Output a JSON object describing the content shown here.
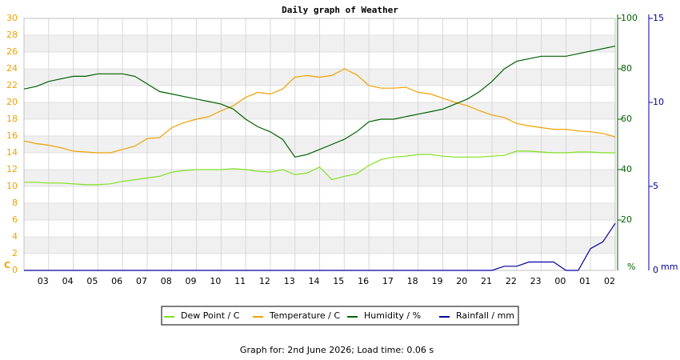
{
  "chart_data": {
    "type": "line",
    "title": "Daily graph of Weather",
    "footer": "Graph for: 2nd June 2026; Load time: 0.06 s",
    "x": [
      0,
      0.5,
      1,
      1.5,
      2,
      2.5,
      3,
      3.5,
      4,
      4.5,
      5,
      5.5,
      6,
      6.5,
      7,
      7.5,
      8,
      8.5,
      9,
      9.5,
      10,
      10.5,
      11,
      11.5,
      12,
      12.5,
      13,
      13.5,
      14,
      14.5,
      15,
      15.5,
      16,
      16.5,
      17,
      17.5,
      18,
      18.5,
      19,
      19.5,
      20,
      20.5,
      21,
      21.5,
      22,
      22.5,
      23,
      23.5,
      24
    ],
    "xlim": [
      0,
      24
    ],
    "xticks": [
      {
        "value": 1,
        "label": "03"
      },
      {
        "value": 2,
        "label": "04"
      },
      {
        "value": 3,
        "label": "05"
      },
      {
        "value": 4,
        "label": "06"
      },
      {
        "value": 5,
        "label": "07"
      },
      {
        "value": 6,
        "label": "08"
      },
      {
        "value": 7,
        "label": "09"
      },
      {
        "value": 8,
        "label": "10"
      },
      {
        "value": 9,
        "label": "11"
      },
      {
        "value": 10,
        "label": "12"
      },
      {
        "value": 11,
        "label": "13"
      },
      {
        "value": 12,
        "label": "14"
      },
      {
        "value": 13,
        "label": "15"
      },
      {
        "value": 14,
        "label": "16"
      },
      {
        "value": 15,
        "label": "17"
      },
      {
        "value": 16,
        "label": "18"
      },
      {
        "value": 17,
        "label": "19"
      },
      {
        "value": 18,
        "label": "20"
      },
      {
        "value": 19,
        "label": "21"
      },
      {
        "value": 20,
        "label": "22"
      },
      {
        "value": 21,
        "label": "23"
      },
      {
        "value": 22,
        "label": "00"
      },
      {
        "value": 23,
        "label": "01"
      },
      {
        "value": 24,
        "label": "02"
      }
    ],
    "ylim": [
      0,
      30
    ],
    "yticks": [
      0,
      2,
      4,
      6,
      8,
      10,
      12,
      14,
      16,
      18,
      20,
      22,
      24,
      26,
      28,
      30
    ],
    "y_unit": "C",
    "y_color": "#f0a000",
    "y2lim": [
      0,
      100
    ],
    "y2ticks": [
      20,
      40,
      60,
      80,
      100
    ],
    "y2_unit": "%",
    "y2_color": "#006000",
    "y3lim": [
      0,
      15
    ],
    "y3ticks": [
      5,
      10,
      15
    ],
    "y3_zero": 0,
    "y3_unit": "mm",
    "y3_color": "#0000a0",
    "grid": true,
    "series": [
      {
        "name": "Dew Point / C",
        "color": "#80e020",
        "axis": "y",
        "values": [
          10.5,
          10.5,
          10.4,
          10.4,
          10.3,
          10.2,
          10.2,
          10.3,
          10.6,
          10.8,
          11.0,
          11.2,
          11.7,
          11.9,
          12.0,
          12.0,
          12.0,
          12.1,
          12.0,
          11.8,
          11.7,
          12.0,
          11.4,
          11.6,
          12.3,
          10.8,
          11.2,
          11.5,
          12.5,
          13.2,
          13.5,
          13.6,
          13.8,
          13.8,
          13.6,
          13.5,
          13.5,
          13.5,
          13.6,
          13.7,
          14.2,
          14.2,
          14.1,
          14.0,
          14.0,
          14.1,
          14.1,
          14.0,
          14.0
        ]
      },
      {
        "name": "Temperature / C",
        "color": "#f0a000",
        "axis": "y",
        "values": [
          15.4,
          15.1,
          14.9,
          14.6,
          14.2,
          14.1,
          14.0,
          14.0,
          14.4,
          14.8,
          15.7,
          15.8,
          17.0,
          17.6,
          18.0,
          18.3,
          19.0,
          19.6,
          20.6,
          21.2,
          21.0,
          21.6,
          23.0,
          23.2,
          23.0,
          23.2,
          24.0,
          23.3,
          22.0,
          21.7,
          21.7,
          21.8,
          21.2,
          21.0,
          20.5,
          20.0,
          19.6,
          19.0,
          18.5,
          18.2,
          17.5,
          17.2,
          17.0,
          16.8,
          16.8,
          16.6,
          16.5,
          16.3,
          15.9
        ]
      },
      {
        "name": "Humidity / %",
        "color": "#006000",
        "axis": "y2",
        "values": [
          72,
          73,
          75,
          76,
          77,
          77,
          78,
          78,
          78,
          77,
          74,
          71,
          70,
          69,
          68,
          67,
          66,
          64,
          60,
          57,
          55,
          52,
          45,
          46,
          48,
          50,
          52,
          55,
          59,
          60,
          60,
          61,
          62,
          63,
          64,
          66,
          68,
          71,
          75,
          80,
          83,
          84,
          85,
          85,
          85,
          86,
          87,
          88,
          89
        ]
      },
      {
        "name": "Rainfall / mm",
        "color": "#0000a0",
        "axis": "y3",
        "values": [
          0,
          0,
          0,
          0,
          0,
          0,
          0,
          0,
          0,
          0,
          0,
          0,
          0,
          0,
          0,
          0,
          0,
          0,
          0,
          0,
          0,
          0,
          0,
          0,
          0,
          0,
          0,
          0,
          0,
          0,
          0,
          0,
          0,
          0,
          0,
          0,
          0,
          0,
          0,
          0.25,
          0.25,
          0.5,
          0.5,
          0.5,
          0,
          0,
          1.3,
          1.7,
          2.8
        ]
      }
    ]
  }
}
